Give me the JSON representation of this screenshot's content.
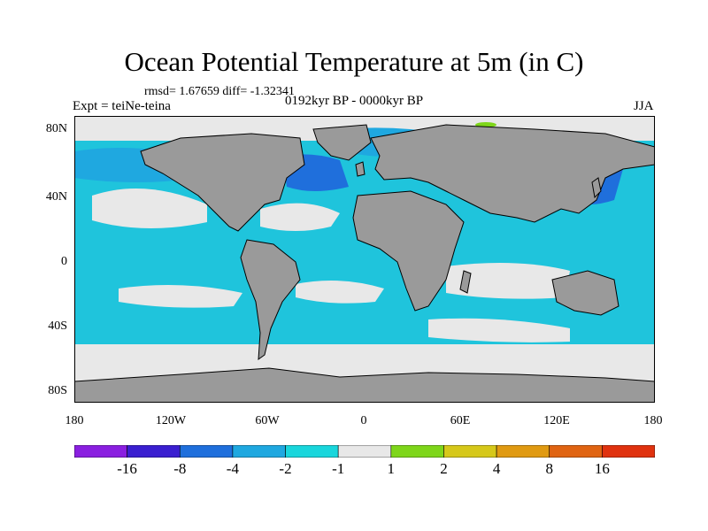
{
  "header": {
    "title": "Ocean Potential Temperature at 5m (in C)",
    "stats": "rmsd= 1.67659 diff= -1.32341",
    "expt": "Expt = teiNe-teina",
    "period": "0192kyr BP - 0000kyr BP",
    "season": "JJA"
  },
  "axes": {
    "lat_labels": [
      "80N",
      "40N",
      "0",
      "40S",
      "80S"
    ],
    "lon_labels": [
      "180",
      "120W",
      "60W",
      "0",
      "60E",
      "120E",
      "180"
    ]
  },
  "colorbar": {
    "labels": [
      "-16",
      "-8",
      "-4",
      "-2",
      "-1",
      "1",
      "2",
      "4",
      "8",
      "16"
    ],
    "colors": [
      "#8a1fe0",
      "#3a1fd0",
      "#1f6fdc",
      "#1fa8e0",
      "#19d6dc",
      "#e8e8e8",
      "#7ed61a",
      "#d6c81a",
      "#e09a12",
      "#e06412",
      "#e0320f"
    ]
  },
  "map_colors": {
    "land": "#9a9a9a",
    "ocean_light": "#1fc4dc",
    "ocean_mid": "#1fa8e0",
    "ocean_dark": "#1f6fdc",
    "neutral": "#e8e8e8",
    "warm": "#7ed61a"
  }
}
